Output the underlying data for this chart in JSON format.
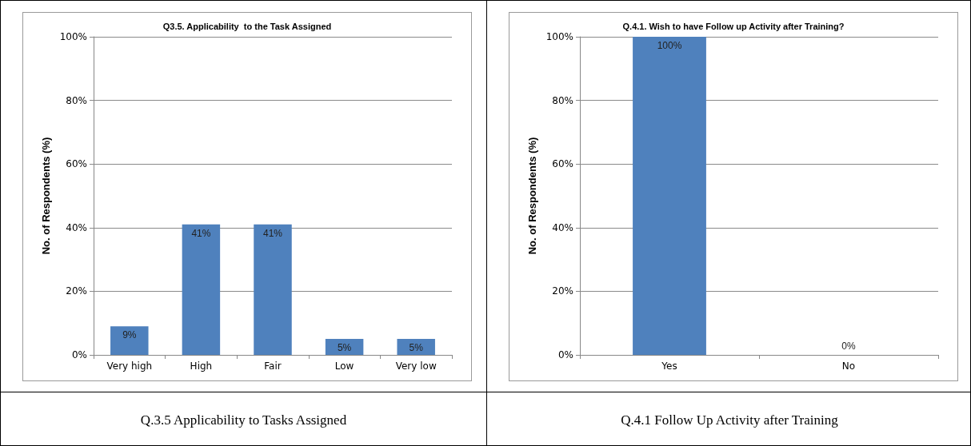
{
  "chart_data": [
    {
      "type": "bar",
      "title": "Q3.5. Applicability  to the Task Assigned",
      "ylabel": "No. of Respondents (%)",
      "categories": [
        "Very high",
        "High",
        "Fair",
        "Low",
        "Very low"
      ],
      "values": [
        9,
        41,
        41,
        5,
        5
      ],
      "value_labels": [
        "9%",
        "41%",
        "41%",
        "5%",
        "5%"
      ],
      "color": "#4f81bd",
      "ylim": [
        0,
        100
      ],
      "yticks": [
        {
          "value": 0,
          "label": "0%"
        },
        {
          "value": 20,
          "label": "20%"
        },
        {
          "value": 40,
          "label": "40%"
        },
        {
          "value": 60,
          "label": "60%"
        },
        {
          "value": 80,
          "label": "80%"
        },
        {
          "value": 100,
          "label": "100%"
        }
      ],
      "grid": "y",
      "annotations": [
        "Q.3.5 Applicability to Tasks Assigned"
      ]
    },
    {
      "type": "bar",
      "title": "Q.4.1. Wish to have Follow up Activity after Training?",
      "ylabel": "No. of Respondents (%)",
      "categories": [
        "Yes",
        "No"
      ],
      "values": [
        100,
        0
      ],
      "value_labels": [
        "100%",
        "0%"
      ],
      "color": "#4f81bd",
      "ylim": [
        0,
        100
      ],
      "yticks": [
        {
          "value": 0,
          "label": "0%"
        },
        {
          "value": 20,
          "label": "20%"
        },
        {
          "value": 40,
          "label": "40%"
        },
        {
          "value": 60,
          "label": "60%"
        },
        {
          "value": 80,
          "label": "80%"
        },
        {
          "value": 100,
          "label": "100%"
        }
      ],
      "grid": "y",
      "annotations": [
        "Q.4.1 Follow Up Activity after Training"
      ]
    }
  ]
}
